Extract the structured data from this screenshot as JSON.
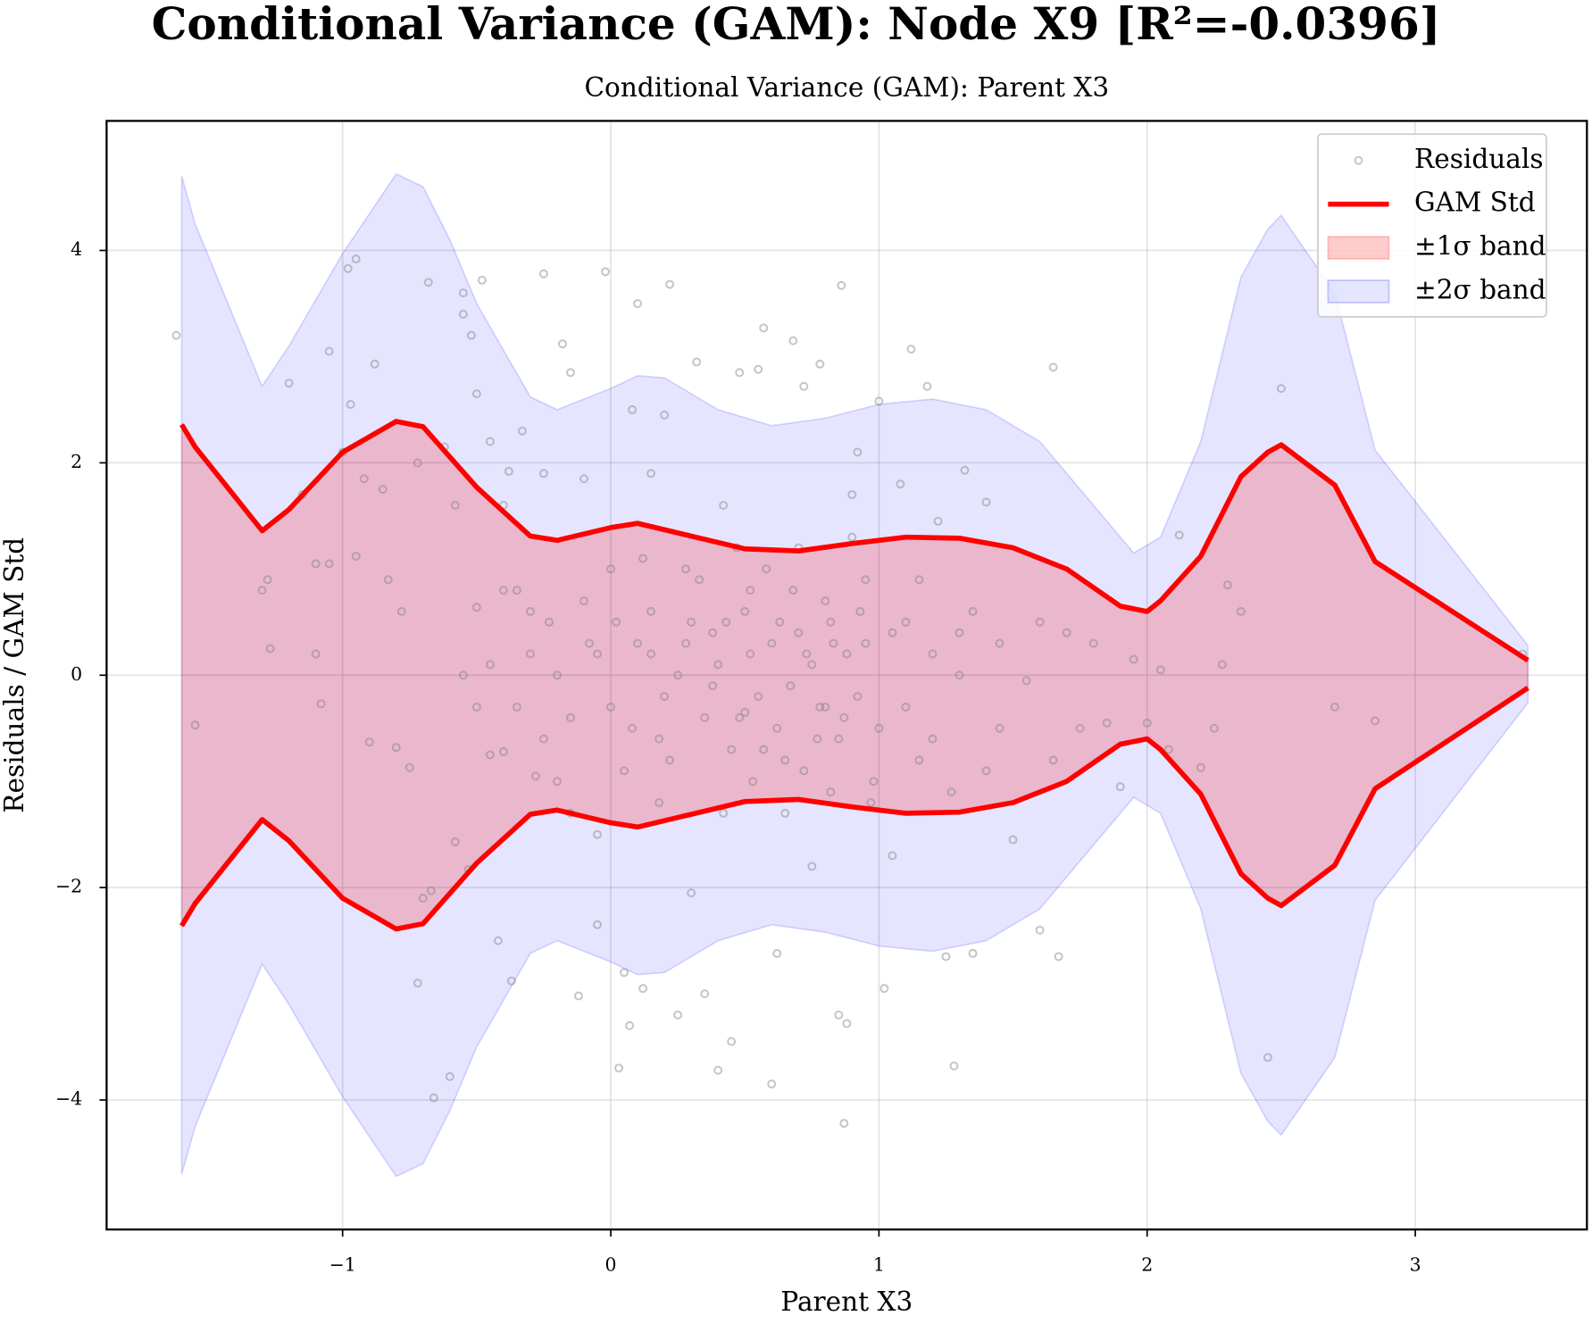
{
  "chart_data": {
    "type": "scatter",
    "title": "Conditional Variance (GAM): Node X9 [R²=-0.0396]",
    "subtitle": "Conditional Variance (GAM): Parent X3",
    "xlabel": "Parent X3",
    "ylabel": "Residuals / GAM Std",
    "xlim": [
      -1.88,
      3.64
    ],
    "ylim": [
      -5.22,
      5.22
    ],
    "xticks": [
      {
        "value": -1,
        "label": "−1"
      },
      0,
      1,
      2,
      3
    ],
    "yticks": [
      {
        "value": -4,
        "label": "−4"
      },
      {
        "value": -2,
        "label": "−2"
      },
      0,
      2,
      4
    ],
    "grid": true,
    "legend": "upper right",
    "series": [
      {
        "name": "Residuals",
        "type": "scatter",
        "color": "#808080",
        "x": [
          -1.62,
          -1.55,
          -1.3,
          -1.28,
          -1.27,
          -1.2,
          -1.15,
          -1.1,
          -1.1,
          -1.08,
          -1.05,
          -1.05,
          -1.0,
          -0.98,
          -0.97,
          -0.95,
          -0.95,
          -0.92,
          -0.9,
          -0.88,
          -0.85,
          -0.83,
          -0.8,
          -0.78,
          -0.75,
          -0.72,
          -0.72,
          -0.7,
          -0.68,
          -0.67,
          -0.66,
          -0.62,
          -0.6,
          -0.58,
          -0.58,
          -0.55,
          -0.55,
          -0.53,
          -0.52,
          -0.5,
          -0.5,
          -0.48,
          -0.45,
          -0.45,
          -0.42,
          -0.4,
          -0.4,
          -0.38,
          -0.37,
          -0.35,
          -0.33,
          -0.3,
          -0.28,
          -0.25,
          -0.25,
          -0.23,
          -0.2,
          -0.18,
          -0.15,
          -0.15,
          -0.12,
          -0.1,
          -0.08,
          -0.05,
          -0.05,
          -0.02,
          0.0,
          0.02,
          0.03,
          0.05,
          0.07,
          0.08,
          0.1,
          0.12,
          0.15,
          0.15,
          0.18,
          0.2,
          0.22,
          0.25,
          0.28,
          0.3,
          0.32,
          0.35,
          0.38,
          0.4,
          0.42,
          0.45,
          0.48,
          0.5,
          0.52,
          0.55,
          0.57,
          0.6,
          0.62,
          0.65,
          0.68,
          0.7,
          0.72,
          0.75,
          0.78,
          0.8,
          0.82,
          0.85,
          0.86,
          0.87,
          0.88,
          0.9,
          0.92,
          0.95,
          0.98,
          1.0,
          1.02,
          1.05,
          1.08,
          1.1,
          1.12,
          1.15,
          1.18,
          1.2,
          1.22,
          1.25,
          1.27,
          1.28,
          1.3,
          1.32,
          1.35,
          1.4,
          1.45,
          1.5,
          1.55,
          1.6,
          1.65,
          1.67,
          1.7,
          1.75,
          1.8,
          1.85,
          1.9,
          1.95,
          2.0,
          2.05,
          2.08,
          2.12,
          2.2,
          2.25,
          2.28,
          2.3,
          2.35,
          2.45,
          2.5,
          2.7,
          2.85,
          3.4,
          0.1,
          0.2,
          0.3,
          0.35,
          0.4,
          0.45,
          0.5,
          0.55,
          0.6,
          0.62,
          0.68,
          0.72,
          0.75,
          0.78,
          0.8,
          0.85,
          0.88,
          0.92,
          0.95,
          1.0,
          1.05,
          1.1,
          -0.1,
          -0.15,
          -0.2,
          -0.25,
          -0.3,
          -0.35,
          -0.4,
          -0.45,
          0.05,
          0.12,
          0.18,
          0.25,
          0.33,
          0.42,
          0.47,
          0.53,
          0.58,
          0.65,
          0.7,
          0.82,
          0.9,
          0.97,
          1.15,
          1.2,
          1.3,
          1.35,
          1.4,
          1.45,
          -0.05,
          0.0,
          0.08,
          0.15,
          0.22,
          0.28,
          0.38,
          0.43,
          0.48,
          0.52,
          0.57,
          0.63,
          0.67,
          0.73,
          0.77,
          0.83,
          0.87,
          0.93,
          -0.5,
          -0.55,
          1.6,
          1.65
        ],
        "values": [
          3.2,
          -0.47,
          0.8,
          0.9,
          0.25,
          2.75,
          1.7,
          1.05,
          0.2,
          -0.27,
          1.05,
          3.05,
          2.1,
          3.83,
          2.55,
          3.92,
          1.12,
          1.85,
          -0.63,
          2.93,
          1.75,
          0.9,
          -0.68,
          0.6,
          -0.87,
          2.0,
          -2.9,
          -2.1,
          3.7,
          -2.03,
          -3.98,
          2.15,
          -3.78,
          1.6,
          -1.57,
          3.6,
          3.4,
          -1.83,
          3.2,
          2.65,
          0.64,
          3.72,
          -0.75,
          2.2,
          -2.5,
          1.6,
          -0.72,
          1.92,
          -2.88,
          0.8,
          2.3,
          0.2,
          -0.95,
          1.9,
          3.78,
          0.5,
          -1.0,
          3.12,
          2.85,
          -1.3,
          -3.02,
          1.85,
          0.3,
          -2.35,
          -1.5,
          3.8,
          -0.3,
          0.5,
          -3.7,
          -2.8,
          -3.3,
          2.5,
          3.5,
          -2.95,
          0.2,
          1.9,
          -0.6,
          2.45,
          3.68,
          -3.2,
          1.0,
          -2.05,
          2.95,
          -3.0,
          0.4,
          -3.72,
          1.6,
          -3.45,
          2.85,
          -0.35,
          0.8,
          2.88,
          3.27,
          -3.85,
          -2.62,
          -0.8,
          3.15,
          1.2,
          2.72,
          -1.8,
          2.93,
          -0.3,
          0.5,
          -3.2,
          3.67,
          -4.22,
          -3.28,
          1.7,
          2.1,
          0.3,
          -1.0,
          2.58,
          -2.95,
          -1.7,
          1.8,
          0.5,
          3.07,
          -0.8,
          2.72,
          0.2,
          1.45,
          -2.65,
          -1.1,
          -3.68,
          0.4,
          1.93,
          -2.62,
          1.63,
          -0.5,
          -1.55,
          -0.05,
          -2.4,
          2.9,
          -2.65,
          0.4,
          -0.5,
          0.3,
          -0.45,
          -1.05,
          0.15,
          -0.45,
          0.05,
          -0.7,
          1.32,
          -0.87,
          -0.5,
          0.1,
          0.85,
          0.6,
          -3.6,
          2.7,
          -0.3,
          -0.43,
          0.2,
          0.3,
          -0.2,
          0.5,
          -0.4,
          0.1,
          -0.7,
          0.6,
          -0.2,
          0.3,
          -0.5,
          0.8,
          -0.9,
          0.1,
          -0.3,
          0.7,
          -0.6,
          0.2,
          -0.2,
          0.9,
          -0.5,
          0.4,
          -0.3,
          0.7,
          -0.4,
          0.0,
          -0.6,
          0.6,
          -0.3,
          0.8,
          0.1,
          -0.9,
          1.1,
          -1.2,
          0.0,
          0.9,
          -1.3,
          1.2,
          -1.0,
          1.0,
          -1.3,
          0.4,
          -1.1,
          1.3,
          -1.2,
          0.9,
          -0.6,
          0.0,
          0.6,
          -0.9,
          0.3,
          0.2,
          1.0,
          -0.5,
          0.6,
          -0.8,
          0.3,
          -0.1,
          0.5,
          -0.4,
          0.2,
          -0.7,
          0.5,
          -0.1,
          0.2,
          -0.6,
          0.3,
          -0.4,
          0.6,
          -0.3,
          0.0,
          0.5,
          -0.8
        ]
      },
      {
        "name": "GAM Std",
        "type": "line",
        "color": "#ff0000",
        "x": [
          -1.6,
          -1.55,
          -1.3,
          -1.2,
          -1.0,
          -0.8,
          -0.7,
          -0.5,
          -0.3,
          -0.2,
          0,
          0.1,
          0.3,
          0.5,
          0.7,
          0.9,
          1.1,
          1.3,
          1.5,
          1.7,
          1.9,
          2.0,
          2.05,
          2.2,
          2.35,
          2.45,
          2.5,
          2.7,
          2.85,
          3.42
        ],
        "values": [
          2.36,
          2.15,
          1.36,
          1.56,
          2.1,
          2.39,
          2.34,
          1.77,
          1.31,
          1.27,
          1.39,
          1.43,
          1.31,
          1.19,
          1.17,
          1.24,
          1.3,
          1.29,
          1.2,
          1.0,
          0.65,
          0.6,
          0.7,
          1.12,
          1.87,
          2.1,
          2.17,
          1.79,
          1.07,
          0.14
        ],
        "lower": [
          -2.36,
          -2.15,
          -1.36,
          -1.56,
          -2.1,
          -2.39,
          -2.34,
          -1.77,
          -1.31,
          -1.27,
          -1.39,
          -1.43,
          -1.31,
          -1.19,
          -1.17,
          -1.24,
          -1.3,
          -1.29,
          -1.2,
          -1.0,
          -0.65,
          -0.6,
          -0.7,
          -1.12,
          -1.87,
          -2.1,
          -2.17,
          -1.79,
          -1.07,
          -0.12
        ]
      },
      {
        "name": "±1σ band",
        "type": "area",
        "color": "#ff0000",
        "x": [
          -1.6,
          -1.55,
          -1.3,
          -1.2,
          -1.0,
          -0.8,
          -0.7,
          -0.5,
          -0.3,
          -0.2,
          0,
          0.1,
          0.3,
          0.5,
          0.7,
          0.9,
          1.1,
          1.3,
          1.5,
          1.7,
          1.9,
          2.0,
          2.05,
          2.2,
          2.35,
          2.45,
          2.5,
          2.7,
          2.85,
          3.42
        ],
        "upper": [
          2.36,
          2.15,
          1.36,
          1.56,
          2.1,
          2.39,
          2.34,
          1.77,
          1.31,
          1.27,
          1.39,
          1.43,
          1.31,
          1.19,
          1.17,
          1.24,
          1.3,
          1.29,
          1.2,
          1.0,
          0.65,
          0.6,
          0.7,
          1.12,
          1.87,
          2.1,
          2.17,
          1.79,
          1.07,
          0.14
        ],
        "lower": [
          -2.36,
          -2.15,
          -1.36,
          -1.56,
          -2.1,
          -2.39,
          -2.34,
          -1.77,
          -1.31,
          -1.27,
          -1.39,
          -1.43,
          -1.31,
          -1.19,
          -1.17,
          -1.24,
          -1.3,
          -1.29,
          -1.2,
          -1.0,
          -0.65,
          -0.6,
          -0.7,
          -1.12,
          -1.87,
          -2.1,
          -2.17,
          -1.79,
          -1.07,
          -0.12
        ]
      },
      {
        "name": "±2σ band",
        "type": "area",
        "color": "#0000ff",
        "x": [
          -1.6,
          -1.55,
          -1.3,
          -1.2,
          -1.0,
          -0.8,
          -0.7,
          -0.6,
          -0.5,
          -0.3,
          -0.2,
          0,
          0.1,
          0.2,
          0.4,
          0.6,
          0.8,
          1.0,
          1.2,
          1.4,
          1.6,
          1.8,
          1.95,
          2.05,
          2.2,
          2.35,
          2.45,
          2.5,
          2.7,
          2.85,
          3.42
        ],
        "upper": [
          4.7,
          4.25,
          2.72,
          3.1,
          3.97,
          4.72,
          4.6,
          4.1,
          3.5,
          2.62,
          2.5,
          2.7,
          2.82,
          2.8,
          2.5,
          2.35,
          2.42,
          2.55,
          2.6,
          2.5,
          2.2,
          1.6,
          1.15,
          1.3,
          2.2,
          3.75,
          4.2,
          4.33,
          3.6,
          2.12,
          0.28
        ],
        "lower": [
          -4.7,
          -4.25,
          -2.72,
          -3.1,
          -3.97,
          -4.72,
          -4.6,
          -4.1,
          -3.5,
          -2.62,
          -2.5,
          -2.7,
          -2.82,
          -2.8,
          -2.5,
          -2.35,
          -2.42,
          -2.55,
          -2.6,
          -2.5,
          -2.2,
          -1.6,
          -1.15,
          -1.3,
          -2.2,
          -3.75,
          -4.2,
          -4.33,
          -3.6,
          -2.12,
          -0.26
        ]
      }
    ]
  }
}
